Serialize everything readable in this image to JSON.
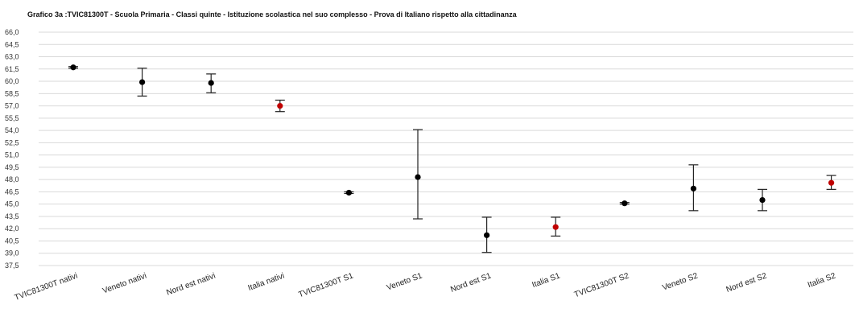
{
  "chart_data": {
    "type": "scatter",
    "title": "Grafico 3a :TVIC81300T - Scuola Primaria - Classi quinte - Istituzione scolastica nel suo complesso - Prova di Italiano rispetto alla  cittadinanza",
    "ylim": [
      37.5,
      66.0
    ],
    "ytick_step": 1.5,
    "ytick_labels": [
      "66,0",
      "64,5",
      "63,0",
      "61,5",
      "60,0",
      "58,5",
      "57,0",
      "55,5",
      "54,0",
      "52,5",
      "51,0",
      "49,5",
      "48,0",
      "46,5",
      "45,0",
      "43,5",
      "42,0",
      "40,5",
      "39,0",
      "37,5"
    ],
    "grid": true,
    "categories": [
      "TVIC81300T nativi",
      "Veneto nativi",
      "Nord est nativi",
      "Italia nativi",
      "TVIC81300T S1",
      "Veneto S1",
      "Nord est S1",
      "Italia S1",
      "TVIC81300T S2",
      "Veneto S2",
      "Nord est S2",
      "Italia S2"
    ],
    "values": [
      61.7,
      59.9,
      59.8,
      57.0,
      46.4,
      48.3,
      41.2,
      42.2,
      45.1,
      46.9,
      45.5,
      47.6
    ],
    "error_low": [
      61.6,
      58.2,
      58.6,
      56.3,
      46.3,
      43.2,
      39.1,
      41.1,
      45.0,
      44.2,
      44.2,
      46.8
    ],
    "error_high": [
      61.8,
      61.6,
      60.9,
      57.7,
      46.5,
      54.1,
      43.4,
      43.4,
      45.2,
      49.8,
      46.8,
      48.5
    ],
    "marker_colors": [
      "#000000",
      "#000000",
      "#000000",
      "#c00000",
      "#000000",
      "#000000",
      "#000000",
      "#c00000",
      "#000000",
      "#000000",
      "#000000",
      "#c00000"
    ]
  }
}
